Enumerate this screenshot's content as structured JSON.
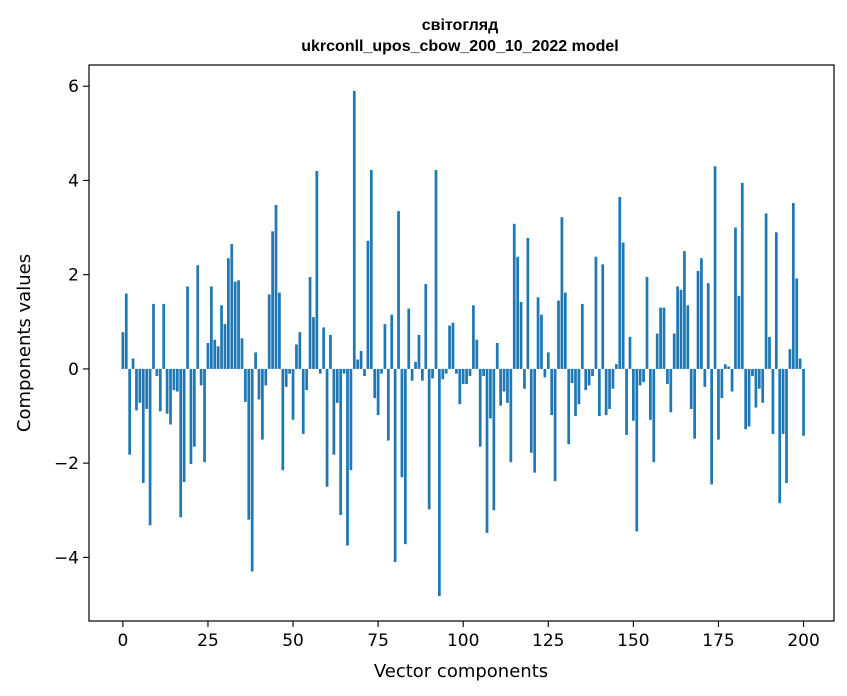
{
  "chart_data": {
    "type": "bar",
    "title": "світогляд",
    "subtitle": "ukrconll_upos_cbow_200_10_2022 model",
    "xlabel": "Vector components",
    "ylabel": "Components values",
    "xlim": [
      -9.95,
      208.95
    ],
    "ylim": [
      -5.35,
      6.45
    ],
    "xticks": [
      0,
      25,
      50,
      75,
      100,
      125,
      150,
      175,
      200
    ],
    "yticks": [
      -4,
      -2,
      0,
      2,
      4,
      6
    ],
    "xtick_labels": [
      "0",
      "25",
      "50",
      "75",
      "100",
      "125",
      "150",
      "175",
      "200"
    ],
    "ytick_labels": [
      "−4",
      "−2",
      "0",
      "2",
      "4",
      "6"
    ],
    "bar_color": "#1f77b4",
    "grid": false,
    "values": [
      0.78,
      1.6,
      -1.82,
      0.22,
      -0.88,
      -0.72,
      -2.42,
      -0.85,
      -3.32,
      1.38,
      -0.15,
      -0.9,
      1.38,
      -0.95,
      -1.18,
      -0.45,
      -0.48,
      -3.15,
      -2.4,
      1.75,
      -2.02,
      -1.65,
      2.2,
      -0.35,
      -1.98,
      0.55,
      1.75,
      0.62,
      0.48,
      1.35,
      0.95,
      2.35,
      2.65,
      1.85,
      1.88,
      0.65,
      -0.7,
      -3.2,
      -4.3,
      0.35,
      -0.65,
      -1.5,
      -0.35,
      1.58,
      2.92,
      3.48,
      1.62,
      -2.15,
      -0.38,
      -0.1,
      -1.08,
      0.52,
      0.78,
      -1.38,
      -0.45,
      1.95,
      1.1,
      4.2,
      -0.1,
      0.88,
      -2.5,
      0.72,
      -1.82,
      -0.72,
      -3.1,
      -0.1,
      -3.75,
      -2.15,
      5.9,
      0.2,
      0.38,
      -0.15,
      2.72,
      4.22,
      -0.62,
      -0.98,
      -0.1,
      0.95,
      -1.52,
      1.15,
      -4.1,
      3.35,
      -2.3,
      -3.72,
      1.28,
      -0.25,
      0.15,
      0.72,
      -0.25,
      1.8,
      -2.98,
      -0.2,
      4.22,
      -4.82,
      -0.22,
      -0.1,
      0.92,
      0.98,
      -0.1,
      -0.75,
      -0.32,
      -0.32,
      -0.15,
      1.35,
      0.62,
      -1.65,
      -0.15,
      -3.48,
      -1.05,
      -3.0,
      0.55,
      -0.78,
      -0.48,
      -0.72,
      -1.98,
      3.08,
      2.38,
      1.42,
      -0.42,
      2.78,
      -1.78,
      -2.2,
      1.52,
      1.15,
      -0.18,
      0.35,
      -0.98,
      -2.38,
      1.45,
      3.22,
      1.62,
      -1.6,
      -0.3,
      -1.0,
      -0.75,
      1.38,
      -0.45,
      -0.35,
      -0.15,
      2.38,
      -1.0,
      2.22,
      -0.98,
      -0.85,
      -0.42,
      0.1,
      3.65,
      2.68,
      -1.4,
      0.68,
      -1.1,
      -3.45,
      -0.35,
      -0.28,
      1.95,
      -1.08,
      -1.98,
      0.75,
      1.3,
      1.3,
      -0.32,
      -0.92,
      0.75,
      1.75,
      1.68,
      2.5,
      1.35,
      -0.85,
      -1.48,
      2.08,
      2.35,
      -0.38,
      1.82,
      -2.45,
      4.3,
      -1.5,
      -0.62,
      0.1,
      0.05,
      -0.48,
      3.0,
      1.55,
      3.95,
      -1.28,
      -1.22,
      -0.15,
      -0.82,
      -0.42,
      -0.72,
      3.3,
      0.68,
      -1.38,
      2.9,
      -2.85,
      -1.38,
      -2.42,
      0.42,
      3.52,
      1.92,
      0.22,
      -1.42
    ]
  }
}
